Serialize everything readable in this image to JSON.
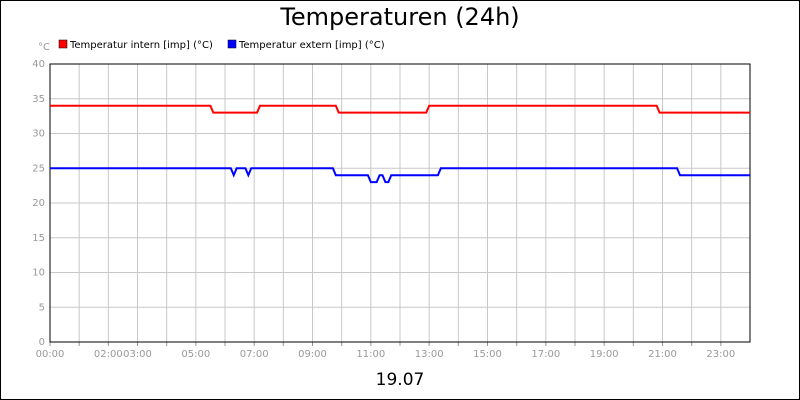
{
  "chart_data": {
    "type": "line",
    "title": "Temperaturen (24h)",
    "y_unit": "°C",
    "date_label": "19.07",
    "xlim": [
      0,
      24
    ],
    "ylim": [
      0,
      40
    ],
    "grid": true,
    "yticks": [
      0,
      5,
      10,
      15,
      20,
      25,
      30,
      35,
      40
    ],
    "xticks": [
      {
        "value": 0,
        "label": "00:00"
      },
      {
        "value": 1,
        "label": null
      },
      {
        "value": 2,
        "label": "02:00"
      },
      {
        "value": 3,
        "label": "03:00"
      },
      {
        "value": 4,
        "label": null
      },
      {
        "value": 5,
        "label": "05:00"
      },
      {
        "value": 6,
        "label": null
      },
      {
        "value": 7,
        "label": "07:00"
      },
      {
        "value": 8,
        "label": null
      },
      {
        "value": 9,
        "label": "09:00"
      },
      {
        "value": 10,
        "label": null
      },
      {
        "value": 11,
        "label": "11:00"
      },
      {
        "value": 12,
        "label": null
      },
      {
        "value": 13,
        "label": "13:00"
      },
      {
        "value": 14,
        "label": null
      },
      {
        "value": 15,
        "label": "15:00"
      },
      {
        "value": 16,
        "label": null
      },
      {
        "value": 17,
        "label": "17:00"
      },
      {
        "value": 18,
        "label": null
      },
      {
        "value": 19,
        "label": "19:00"
      },
      {
        "value": 20,
        "label": null
      },
      {
        "value": 21,
        "label": "21:00"
      },
      {
        "value": 22,
        "label": null
      },
      {
        "value": 23,
        "label": "23:00"
      }
    ],
    "series": [
      {
        "name": "Temperatur intern [imp] (°C)",
        "color": "#ff0000",
        "x": [
          0,
          5.5,
          5.6,
          7.1,
          7.2,
          9.8,
          9.9,
          12.9,
          13.0,
          20.8,
          20.9,
          24
        ],
        "values": [
          34,
          34,
          33,
          33,
          34,
          34,
          33,
          33,
          34,
          34,
          33,
          33
        ]
      },
      {
        "name": "Temperatur extern [imp] (°C)",
        "color": "#0000ff",
        "x": [
          0,
          6.2,
          6.3,
          6.4,
          6.7,
          6.8,
          6.9,
          9.7,
          9.8,
          10.9,
          11.0,
          11.2,
          11.3,
          11.4,
          11.5,
          11.6,
          11.7,
          13.3,
          13.4,
          21.5,
          21.6,
          24
        ],
        "values": [
          25,
          25,
          24,
          25,
          25,
          24,
          25,
          25,
          24,
          24,
          23,
          23,
          24,
          24,
          23,
          23,
          24,
          24,
          25,
          25,
          24,
          24
        ]
      }
    ]
  }
}
